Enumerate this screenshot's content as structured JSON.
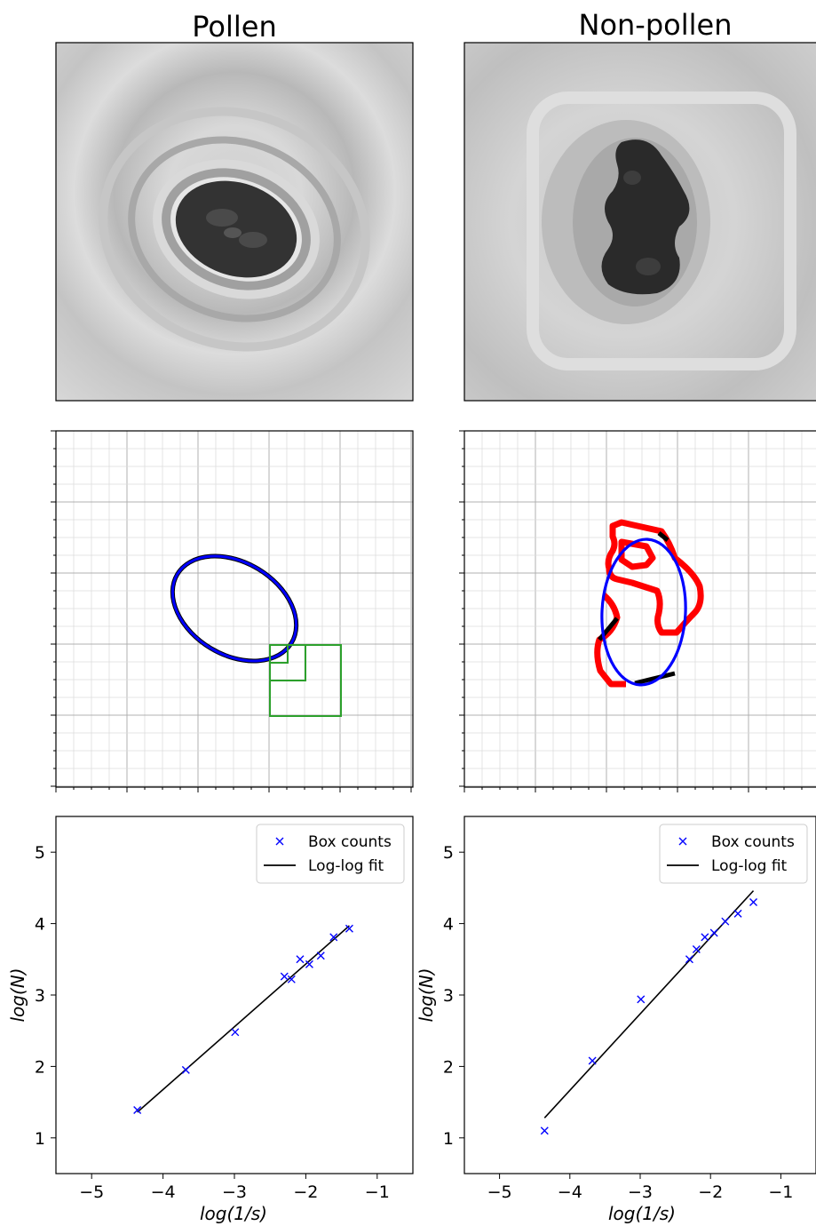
{
  "columns": [
    {
      "title": "Pollen"
    },
    {
      "title": "Non-pollen"
    }
  ],
  "colors": {
    "box_counts": "#0000ff",
    "fit": "#000000",
    "ellipse": "#0000ff",
    "contour_outside": "#ff0000",
    "boxes": "#2ca02c",
    "grid_major": "#b0b0b0",
    "grid_minor": "#dddddd"
  },
  "chart_data": [
    {
      "type": "scatter",
      "panel": "pollen",
      "xlabel": "log(1/s)",
      "ylabel": "log(N)",
      "xlim": [
        -5.5,
        -0.5
      ],
      "ylim": [
        0.5,
        5.5
      ],
      "xticks": [
        -5,
        -4,
        -3,
        -2,
        -1
      ],
      "yticks": [
        1,
        2,
        3,
        4,
        5
      ],
      "legend_position": "top-right",
      "series": [
        {
          "name": "Box counts",
          "kind": "points",
          "marker": "x",
          "x": [
            -4.36,
            -3.68,
            -2.99,
            -2.3,
            -2.2,
            -2.08,
            -1.95,
            -1.79,
            -1.61,
            -1.39
          ],
          "y": [
            1.39,
            1.95,
            2.48,
            3.26,
            3.22,
            3.5,
            3.43,
            3.55,
            3.81,
            3.93
          ]
        },
        {
          "name": "Log-log fit",
          "kind": "line",
          "x": [
            -4.36,
            -1.39
          ],
          "y": [
            1.36,
            3.97
          ]
        }
      ]
    },
    {
      "type": "scatter",
      "panel": "non-pollen",
      "xlabel": "log(1/s)",
      "ylabel": "log(N)",
      "xlim": [
        -5.5,
        -0.5
      ],
      "ylim": [
        0.5,
        5.5
      ],
      "xticks": [
        -5,
        -4,
        -3,
        -2,
        -1
      ],
      "yticks": [
        1,
        2,
        3,
        4,
        5
      ],
      "legend_position": "top-right",
      "series": [
        {
          "name": "Box counts",
          "kind": "points",
          "marker": "x",
          "x": [
            -4.36,
            -3.68,
            -2.99,
            -2.3,
            -2.2,
            -2.08,
            -1.95,
            -1.79,
            -1.61,
            -1.39
          ],
          "y": [
            1.1,
            2.08,
            2.94,
            3.5,
            3.64,
            3.81,
            3.87,
            4.03,
            4.14,
            4.3
          ]
        },
        {
          "name": "Log-log fit",
          "kind": "line",
          "x": [
            -4.36,
            -1.39
          ],
          "y": [
            1.28,
            4.46
          ]
        }
      ]
    }
  ]
}
